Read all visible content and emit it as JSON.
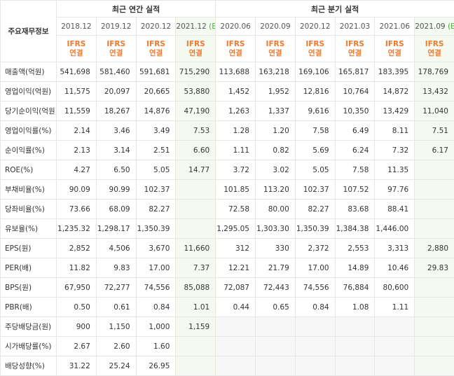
{
  "header": {
    "title": "주요재무정보",
    "groups": [
      {
        "label": "최근 연간 실적",
        "span": 4
      },
      {
        "label": "최근 분기 실적",
        "span": 6
      }
    ],
    "columns": [
      {
        "period": "2018.12",
        "basis": "IFRS",
        "consolidated": "연결"
      },
      {
        "period": "2019.12",
        "basis": "IFRS",
        "consolidated": "연결"
      },
      {
        "period": "2020.12",
        "basis": "IFRS",
        "consolidated": "연결"
      },
      {
        "period": "2021.12",
        "estimate": "(E)",
        "basis": "IFRS",
        "consolidated": "연결"
      },
      {
        "period": "2020.06",
        "basis": "IFRS",
        "consolidated": "연결"
      },
      {
        "period": "2020.09",
        "basis": "IFRS",
        "consolidated": "연결"
      },
      {
        "period": "2020.12",
        "basis": "IFRS",
        "consolidated": "연결"
      },
      {
        "period": "2021.03",
        "basis": "IFRS",
        "consolidated": "연결"
      },
      {
        "period": "2021.06",
        "basis": "IFRS",
        "consolidated": "연결"
      },
      {
        "period": "2021.09",
        "estimate": "(E)",
        "basis": "IFRS",
        "consolidated": "연결"
      }
    ]
  },
  "table": {
    "sections": [
      [
        {
          "label": "매출액(억원)",
          "values": [
            "541,698",
            "581,460",
            "591,681",
            "715,290",
            "113,688",
            "163,218",
            "169,106",
            "165,817",
            "183,395",
            "178,769"
          ]
        },
        {
          "label": "영업이익(억원)",
          "values": [
            "11,575",
            "20,097",
            "20,665",
            "53,880",
            "1,452",
            "1,952",
            "12,816",
            "10,764",
            "14,872",
            "13,432"
          ]
        },
        {
          "label": "당기순이익(억원)",
          "values": [
            "11,559",
            "18,267",
            "14,876",
            "47,190",
            "1,263",
            "1,337",
            "9,616",
            "10,350",
            "13,429",
            "11,040"
          ]
        }
      ],
      [
        {
          "label": "영업이익률(%)",
          "values": [
            "2.14",
            "3.46",
            "3.49",
            "7.53",
            "1.28",
            "1.20",
            "7.58",
            "6.49",
            "8.11",
            "7.51"
          ]
        },
        {
          "label": "순이익률(%)",
          "values": [
            "2.13",
            "3.14",
            "2.51",
            "6.60",
            "1.11",
            "0.82",
            "5.69",
            "6.24",
            "7.32",
            "6.17"
          ]
        },
        {
          "label": "ROE(%)",
          "values": [
            "4.27",
            "6.50",
            "5.05",
            "14.77",
            "3.72",
            "3.02",
            "5.05",
            "7.58",
            "11.35",
            null
          ]
        }
      ],
      [
        {
          "label": "부채비율(%)",
          "values": [
            "90.09",
            "90.99",
            "102.37",
            null,
            "101.85",
            "113.20",
            "102.37",
            "107.52",
            "97.76",
            null
          ]
        },
        {
          "label": "당좌비율(%)",
          "values": [
            "73.66",
            "68.09",
            "82.27",
            null,
            "72.58",
            "80.00",
            "82.27",
            "83.68",
            "88.41",
            null
          ]
        },
        {
          "label": "유보율(%)",
          "values": [
            "1,235.32",
            "1,298.17",
            "1,350.39",
            null,
            "1,295.05",
            "1,303.30",
            "1,350.39",
            "1,384.38",
            "1,446.00",
            null
          ]
        }
      ],
      [
        {
          "label": "EPS(원)",
          "values": [
            "2,852",
            "4,506",
            "3,670",
            "11,660",
            "312",
            "330",
            "2,372",
            "2,553",
            "3,313",
            "2,880"
          ]
        },
        {
          "label": "PER(배)",
          "values": [
            "11.82",
            "9.83",
            "17.00",
            "7.37",
            "12.21",
            "21.79",
            "17.00",
            "14.89",
            "10.46",
            "29.83"
          ]
        },
        {
          "label": "BPS(원)",
          "values": [
            "67,950",
            "72,277",
            "74,556",
            "85,088",
            "72,087",
            "72,443",
            "74,556",
            "76,884",
            "80,600",
            null
          ]
        },
        {
          "label": "PBR(배)",
          "values": [
            "0.50",
            "0.61",
            "0.84",
            "1.01",
            "0.44",
            "0.65",
            "0.84",
            "1.08",
            "1.11",
            null
          ]
        }
      ],
      [
        {
          "label": "주당배당금(원)",
          "values": [
            "900",
            "1,150",
            "1,000",
            "1,159",
            null,
            null,
            null,
            null,
            null,
            null
          ]
        },
        {
          "label": "시가배당률(%)",
          "values": [
            "2.67",
            "2.60",
            "1.60",
            null,
            null,
            null,
            null,
            null,
            null,
            null
          ]
        },
        {
          "label": "배당성향(%)",
          "values": [
            "31.22",
            "25.24",
            "26.95",
            null,
            null,
            null,
            null,
            null,
            null,
            null
          ]
        }
      ]
    ]
  }
}
